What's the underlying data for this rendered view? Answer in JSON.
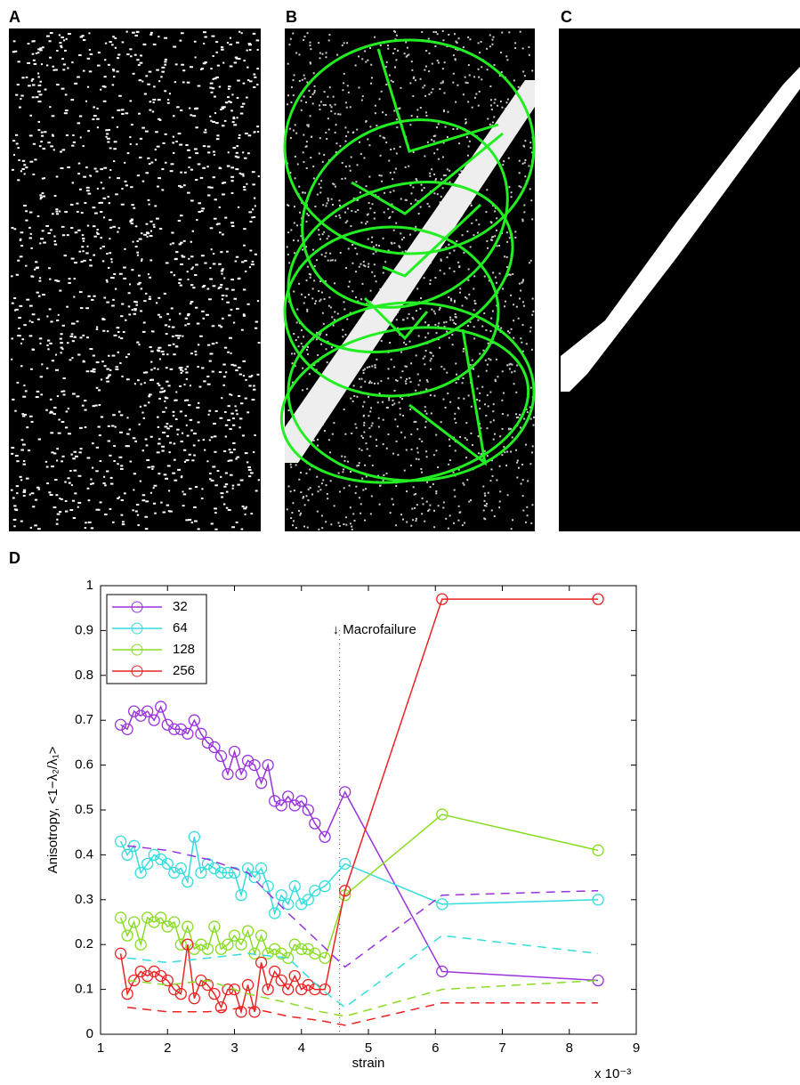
{
  "panel_labels": [
    "A",
    "B",
    "C",
    "D"
  ],
  "chart_data": {
    "type": "line",
    "x_label": "strain",
    "x_multiplier": "x 10⁻³",
    "y_label": "Anisotropy, <1−λ₂/λ₁>",
    "x": [
      1.3,
      1.4,
      1.5,
      1.6,
      1.7,
      1.8,
      1.9,
      2.0,
      2.1,
      2.2,
      2.3,
      2.4,
      2.5,
      2.6,
      2.7,
      2.8,
      2.9,
      3.0,
      3.1,
      3.2,
      3.3,
      3.4,
      3.5,
      3.6,
      3.7,
      3.8,
      3.9,
      4.0,
      4.1,
      4.2,
      4.35,
      4.65,
      6.1,
      8.43
    ],
    "series": [
      {
        "name": "32",
        "color": "#9933dd",
        "marker": true,
        "values": [
          0.69,
          0.68,
          0.72,
          0.71,
          0.72,
          0.7,
          0.73,
          0.69,
          0.68,
          0.68,
          0.67,
          0.7,
          0.67,
          0.65,
          0.64,
          0.62,
          0.58,
          0.63,
          0.58,
          0.61,
          0.6,
          0.56,
          0.6,
          0.52,
          0.51,
          0.53,
          0.51,
          0.52,
          0.5,
          0.47,
          0.44,
          0.54,
          0.14,
          0.12
        ]
      },
      {
        "name": "64",
        "color": "#33dddd",
        "marker": true,
        "values": [
          0.43,
          0.4,
          0.42,
          0.36,
          0.38,
          0.4,
          0.39,
          0.38,
          0.36,
          0.37,
          0.34,
          0.44,
          0.36,
          0.38,
          0.37,
          0.36,
          0.36,
          0.36,
          0.31,
          0.37,
          0.35,
          0.37,
          0.33,
          0.27,
          0.31,
          0.29,
          0.33,
          0.29,
          0.3,
          0.32,
          0.33,
          0.38,
          0.29,
          0.3
        ]
      },
      {
        "name": "128",
        "color": "#88dd22",
        "marker": true,
        "values": [
          0.26,
          0.22,
          0.25,
          0.2,
          0.26,
          0.25,
          0.26,
          0.24,
          0.25,
          0.2,
          0.24,
          0.19,
          0.2,
          0.19,
          0.24,
          0.19,
          0.2,
          0.22,
          0.2,
          0.23,
          0.18,
          0.22,
          0.18,
          0.19,
          0.18,
          0.17,
          0.2,
          0.19,
          0.19,
          0.18,
          0.17,
          0.31,
          0.49,
          0.41
        ]
      },
      {
        "name": "256",
        "color": "#ee2222",
        "marker": true,
        "values": [
          0.18,
          0.09,
          0.12,
          0.14,
          0.13,
          0.14,
          0.13,
          0.12,
          0.1,
          0.09,
          0.2,
          0.08,
          0.12,
          0.11,
          0.09,
          0.06,
          0.1,
          0.1,
          0.05,
          0.11,
          0.05,
          0.16,
          0.1,
          0.14,
          0.12,
          0.1,
          0.13,
          0.1,
          0.11,
          0.1,
          0.1,
          0.32,
          0.97,
          0.97
        ]
      },
      {
        "color": "#9933dd",
        "dashed": true,
        "x": [
          1.4,
          2.0,
          2.6,
          3.2,
          3.8,
          4.3,
          4.65,
          6.1,
          8.43
        ],
        "values": [
          0.42,
          0.41,
          0.39,
          0.36,
          0.27,
          0.2,
          0.15,
          0.31,
          0.32
        ]
      },
      {
        "color": "#33dddd",
        "dashed": true,
        "x": [
          1.4,
          2.0,
          2.6,
          3.2,
          3.8,
          4.3,
          4.65,
          6.1,
          8.43
        ],
        "values": [
          0.17,
          0.16,
          0.17,
          0.18,
          0.17,
          0.1,
          0.06,
          0.22,
          0.18
        ]
      },
      {
        "color": "#88dd22",
        "dashed": true,
        "x": [
          1.4,
          2.0,
          2.6,
          3.2,
          3.8,
          4.3,
          4.65,
          6.1,
          8.43
        ],
        "values": [
          0.12,
          0.11,
          0.12,
          0.09,
          0.07,
          0.05,
          0.04,
          0.1,
          0.12
        ]
      },
      {
        "color": "#ee2222",
        "dashed": true,
        "x": [
          1.4,
          2.0,
          2.6,
          3.2,
          3.8,
          4.3,
          4.65,
          6.1,
          8.43
        ],
        "values": [
          0.06,
          0.05,
          0.05,
          0.06,
          0.04,
          0.03,
          0.02,
          0.07,
          0.07
        ]
      }
    ],
    "annotation": {
      "text": "↓ Macrofailure",
      "x": 4.57
    },
    "xlim": [
      1,
      9
    ],
    "xticks": [
      1,
      2,
      3,
      4,
      5,
      6,
      7,
      8,
      9
    ],
    "ylim": [
      0,
      1
    ],
    "yticks": [
      0,
      0.1,
      0.2,
      0.3,
      0.4,
      0.5,
      0.6,
      0.7,
      0.8,
      0.9,
      1
    ],
    "legend": "top-left"
  }
}
